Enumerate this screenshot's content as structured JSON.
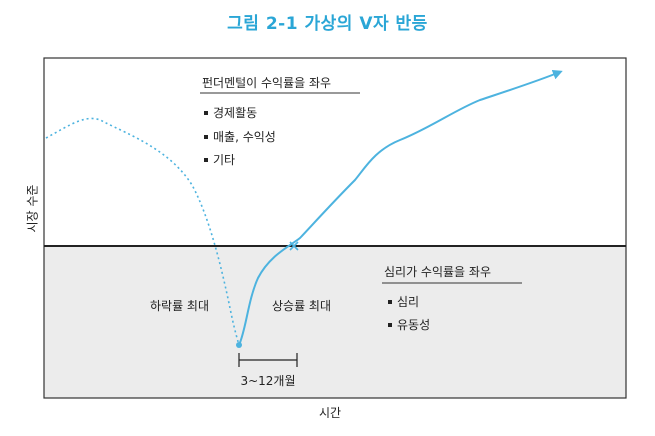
{
  "title": "그림 2-1 가상의 V자 반등",
  "axes": {
    "ylabel": "시장 수준",
    "xlabel": "시간"
  },
  "upper_box": {
    "heading": "펀더멘털이 수익률을 좌우",
    "items": [
      "경제활동",
      "매출, 수익성",
      "기타"
    ]
  },
  "lower_box": {
    "heading": "심리가 수익률을 좌우",
    "items": [
      "심리",
      "유동성"
    ]
  },
  "labels": {
    "decline": "하락률 최대",
    "rise": "상승률 최대",
    "period": "3~12개월"
  },
  "colors": {
    "accent": "#2aa6d6",
    "lower_fill": "#ececec",
    "curve": "#4db3df"
  }
}
